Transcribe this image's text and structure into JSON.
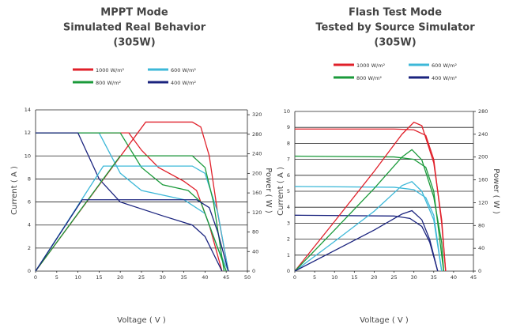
{
  "chart_data": [
    {
      "type": "line",
      "title": [
        "MPPT Mode",
        "Simulated Real Behavior",
        "(305W)"
      ],
      "x_label": "Voltage ( V )",
      "y_label": "Current ( A )",
      "y2_label": "Power ( W )",
      "xlim": [
        0,
        50
      ],
      "xticks": [
        0,
        5,
        10,
        15,
        20,
        25,
        30,
        35,
        40,
        45,
        50
      ],
      "ylim": [
        0,
        14
      ],
      "yticks": [
        0,
        2,
        4,
        6,
        8,
        10,
        12,
        14
      ],
      "y2lim": [
        0,
        330
      ],
      "y2ticks": [
        0,
        40,
        80,
        120,
        160,
        200,
        240,
        280,
        320
      ],
      "grid": true,
      "series": [
        {
          "name": "1000 W/m²",
          "color": "#e0202a",
          "x": [
            0,
            22,
            25,
            29,
            35,
            38,
            41,
            44
          ],
          "values": [
            12,
            12,
            10.5,
            9,
            7.8,
            7,
            4,
            0
          ]
        },
        {
          "name": "600 W/m²",
          "color": "#3db8d8",
          "x": [
            0,
            15,
            20,
            25,
            35,
            40,
            43,
            45.5
          ],
          "values": [
            12,
            12,
            8.5,
            7,
            6.2,
            5,
            2,
            0
          ]
        },
        {
          "name": "800 W/m²",
          "color": "#1a9a3a",
          "x": [
            0,
            20,
            25,
            30,
            36,
            39,
            42,
            45
          ],
          "values": [
            12,
            12,
            9,
            7.5,
            7,
            6,
            3,
            0
          ]
        },
        {
          "name": "400 W/m²",
          "color": "#1a237e",
          "x": [
            0,
            10,
            15,
            20,
            30,
            37,
            40,
            42,
            44
          ],
          "values": [
            12,
            12,
            8,
            6,
            4.8,
            4,
            3,
            1.5,
            0
          ]
        },
        {
          "color": "#e0202a",
          "axis": "y2",
          "x": [
            0,
            26,
            37,
            39,
            41,
            43,
            45.5
          ],
          "values": [
            0,
            305,
            305,
            295,
            236,
            118,
            0
          ]
        },
        {
          "color": "#3db8d8",
          "axis": "y2",
          "x": [
            0,
            16,
            37,
            40,
            43,
            45.5
          ],
          "values": [
            0,
            215,
            215,
            200,
            120,
            0
          ]
        },
        {
          "color": "#1a9a3a",
          "axis": "y2",
          "x": [
            0,
            20,
            37,
            40,
            42,
            44.5
          ],
          "values": [
            0,
            236,
            236,
            212,
            141,
            0
          ]
        },
        {
          "color": "#1a237e",
          "axis": "y2",
          "x": [
            0,
            11,
            38,
            41,
            43,
            45.5
          ],
          "values": [
            0,
            146,
            146,
            130,
            80,
            0
          ]
        }
      ]
    },
    {
      "type": "line",
      "title": [
        "Flash Test Mode",
        "Tested by Source Simulator",
        "(305W)"
      ],
      "x_label": "Voltage ( V )",
      "y_label": "Current ( A )",
      "y2_label": "Power ( W )",
      "xlim": [
        0,
        45
      ],
      "xticks": [
        0,
        5,
        10,
        15,
        20,
        25,
        30,
        35,
        40,
        45
      ],
      "ylim": [
        0,
        10
      ],
      "yticks": [
        0,
        1,
        2,
        3,
        4,
        5,
        6,
        7,
        8,
        9,
        10
      ],
      "y2lim": [
        0,
        280
      ],
      "y2ticks": [
        0,
        40,
        80,
        120,
        160,
        200,
        240,
        280
      ],
      "grid": true,
      "series": [
        {
          "name": "1000 W/m²",
          "color": "#e0202a",
          "x": [
            0,
            25,
            30,
            33,
            35,
            37,
            38
          ],
          "values": [
            8.9,
            8.9,
            8.85,
            8.5,
            7,
            3,
            0
          ]
        },
        {
          "name": "600 W/m²",
          "color": "#3db8d8",
          "x": [
            0,
            25,
            30,
            33,
            35,
            37
          ],
          "values": [
            5.3,
            5.25,
            5.1,
            4.6,
            3.5,
            0
          ]
        },
        {
          "name": "800 W/m²",
          "color": "#1a9a3a",
          "x": [
            0,
            25,
            30,
            33,
            35,
            36.5,
            37.5
          ],
          "values": [
            7.2,
            7.15,
            7,
            6.5,
            5,
            2,
            0
          ]
        },
        {
          "name": "400 W/m²",
          "color": "#1a237e",
          "x": [
            0,
            25,
            29,
            32,
            34,
            36
          ],
          "values": [
            3.5,
            3.45,
            3.3,
            2.8,
            1.8,
            0
          ]
        },
        {
          "color": "#e0202a",
          "axis": "y2",
          "x": [
            0,
            10,
            20,
            27,
            30,
            32,
            35,
            37,
            38
          ],
          "values": [
            0,
            87,
            175,
            240,
            261,
            255,
            190,
            90,
            0
          ]
        },
        {
          "color": "#3db8d8",
          "axis": "y2",
          "x": [
            0,
            10,
            20,
            27,
            29.5,
            32,
            35,
            37
          ],
          "values": [
            0,
            52,
            105,
            150,
            157,
            140,
            90,
            0
          ]
        },
        {
          "color": "#1a9a3a",
          "axis": "y2",
          "x": [
            0,
            10,
            20,
            27,
            29.5,
            32,
            35,
            37,
            37.5
          ],
          "values": [
            0,
            72,
            145,
            200,
            213,
            195,
            130,
            50,
            0
          ]
        },
        {
          "color": "#1a237e",
          "axis": "y2",
          "x": [
            0,
            10,
            20,
            27,
            29.5,
            32,
            34,
            36
          ],
          "values": [
            0,
            36,
            72,
            100,
            106,
            90,
            55,
            0
          ]
        }
      ]
    }
  ]
}
